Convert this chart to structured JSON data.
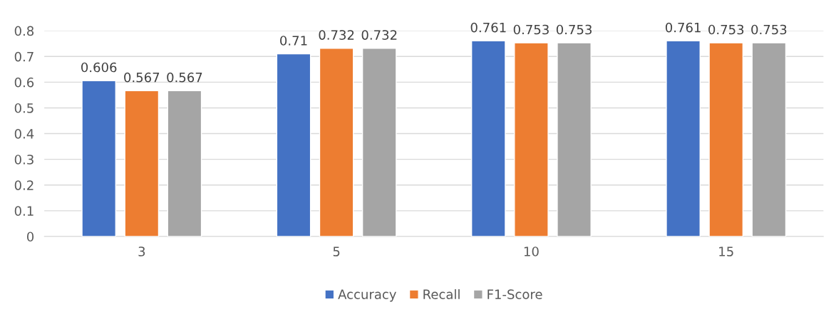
{
  "chart_data": {
    "type": "bar",
    "categories": [
      "3",
      "5",
      "10",
      "15"
    ],
    "series": [
      {
        "name": "Accuracy",
        "color": "#4472c4",
        "values": [
          0.606,
          0.71,
          0.761,
          0.761
        ]
      },
      {
        "name": "Recall",
        "color": "#ed7d31",
        "values": [
          0.567,
          0.732,
          0.753,
          0.753
        ]
      },
      {
        "name": "F1-Score",
        "color": "#a5a5a5",
        "values": [
          0.567,
          0.732,
          0.753,
          0.753
        ]
      }
    ],
    "ylim": [
      0,
      0.8
    ],
    "yticks": [
      0,
      0.1,
      0.2,
      0.3,
      0.4,
      0.5,
      0.6,
      0.7,
      0.8
    ],
    "grid": "y",
    "legend": "bottom",
    "data_labels": true
  }
}
